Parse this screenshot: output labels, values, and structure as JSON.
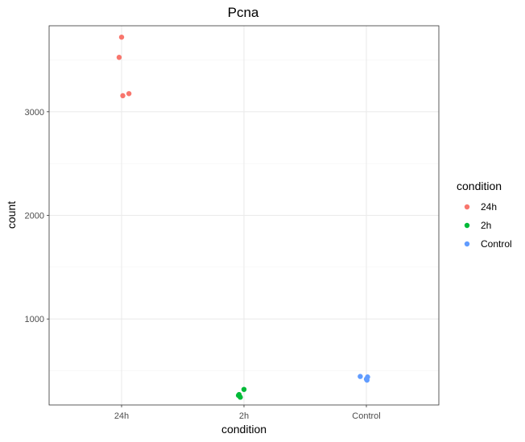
{
  "chart_data": {
    "type": "scatter",
    "title": "Pcna",
    "xlabel": "condition",
    "ylabel": "count",
    "categories": [
      "24h",
      "2h",
      "Control"
    ],
    "ylim": [
      170,
      3830
    ],
    "y_ticks": [
      1000,
      2000,
      3000
    ],
    "y_tick_labels": [
      "1000",
      "2000",
      "3000"
    ],
    "grid": true,
    "legend": {
      "title": "condition",
      "position": "right",
      "entries": [
        "24h",
        "2h",
        "Control"
      ]
    },
    "colors": {
      "24h": "#F8766D",
      "2h": "#00BA38",
      "Control": "#619CFF"
    },
    "series": [
      {
        "name": "24h",
        "points": [
          {
            "x": "24h",
            "jitter": 0.0,
            "y": 3720
          },
          {
            "x": "24h",
            "jitter": -0.02,
            "y": 3525
          },
          {
            "x": "24h",
            "jitter": 0.06,
            "y": 3175
          },
          {
            "x": "24h",
            "jitter": 0.01,
            "y": 3155
          }
        ]
      },
      {
        "name": "2h",
        "points": [
          {
            "x": "2h",
            "jitter": 0.0,
            "y": 320
          },
          {
            "x": "2h",
            "jitter": -0.04,
            "y": 270
          },
          {
            "x": "2h",
            "jitter": -0.03,
            "y": 245
          },
          {
            "x": "2h",
            "jitter": -0.045,
            "y": 262
          }
        ]
      },
      {
        "name": "Control",
        "points": [
          {
            "x": "Control",
            "jitter": -0.05,
            "y": 445
          },
          {
            "x": "Control",
            "jitter": 0.01,
            "y": 440
          },
          {
            "x": "Control",
            "jitter": 0.0,
            "y": 420
          },
          {
            "x": "Control",
            "jitter": 0.005,
            "y": 410
          }
        ]
      }
    ]
  }
}
